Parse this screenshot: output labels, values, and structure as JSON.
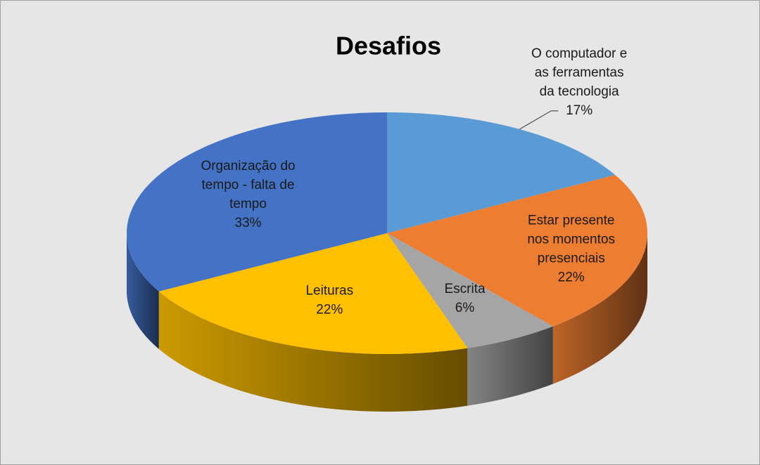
{
  "chart_data": {
    "type": "pie",
    "title": "Desafios",
    "categories": [
      "O computador e as ferramentas da tecnologia",
      "Estar presente nos momentos presenciais",
      "Escrita",
      "Leituras",
      "Organização do tempo - falta de tempo"
    ],
    "values": [
      17,
      22,
      6,
      22,
      33
    ],
    "value_labels": [
      "17%",
      "22%",
      "6%",
      "22%",
      "33%"
    ],
    "colors": [
      "#5b9bd5",
      "#ed7d31",
      "#a5a5a5",
      "#ffc000",
      "#4472c4"
    ]
  }
}
